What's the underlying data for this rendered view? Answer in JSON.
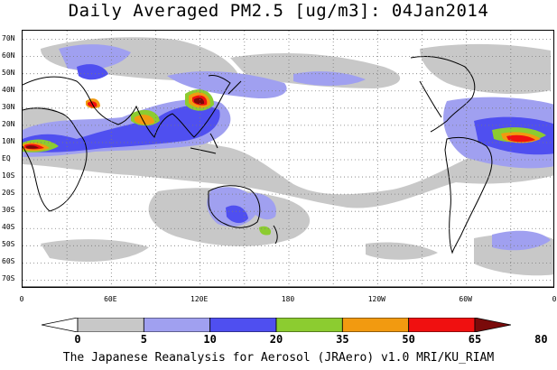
{
  "title": "Daily Averaged PM2.5 [ug/m3]: 04Jan2014",
  "credit": "The Japanese Reanalysis for Aerosol (JRAero) v1.0 MRI/KU_RIAM",
  "map": {
    "projection": "equirectangular",
    "lon_range": [
      0,
      360
    ],
    "lat_range": [
      -75,
      75
    ],
    "gridlines": "dotted",
    "lat_labels": [
      "70N",
      "60N",
      "50N",
      "40N",
      "30N",
      "20N",
      "10N",
      "EQ",
      "10S",
      "20S",
      "30S",
      "40S",
      "50S",
      "60S",
      "70S"
    ],
    "lon_labels": [
      "0",
      "60E",
      "120E",
      "180",
      "120W",
      "60W",
      "0"
    ]
  },
  "colorbar": {
    "levels": [
      "0",
      "5",
      "10",
      "20",
      "35",
      "50",
      "65",
      "80"
    ],
    "colors": [
      "#ffffff",
      "#c8c8c8",
      "#a0a0f0",
      "#4f4ff0",
      "#8ccc30",
      "#f29a10",
      "#f01010",
      "#7a0a0a"
    ]
  }
}
